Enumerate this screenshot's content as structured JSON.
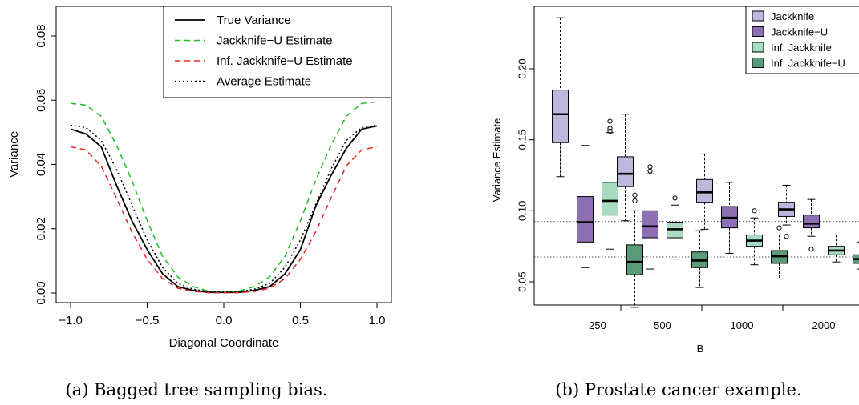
{
  "captions": {
    "a": "(a) Bagged tree sampling bias.",
    "b": "(b) Prostate cancer example."
  },
  "chart_data": [
    {
      "type": "line",
      "title": "",
      "xlabel": "Diagonal Coordinate",
      "ylabel": "Variance",
      "xlim": [
        -1.0,
        1.0
      ],
      "ylim": [
        0.0,
        0.085
      ],
      "x_ticks": [
        -1.0,
        -0.5,
        0.0,
        0.5,
        1.0
      ],
      "x_tick_labels": [
        "−1.0",
        "−0.5",
        "0.0",
        "0.5",
        "1.0"
      ],
      "y_ticks": [
        0.0,
        0.02,
        0.04,
        0.06,
        0.08
      ],
      "y_tick_labels": [
        "0.00",
        "0.02",
        "0.04",
        "0.06",
        "0.08"
      ],
      "legend_position": "top-right",
      "x": [
        -1.0,
        -0.9,
        -0.8,
        -0.7,
        -0.6,
        -0.5,
        -0.4,
        -0.3,
        -0.2,
        -0.1,
        0.0,
        0.1,
        0.2,
        0.3,
        0.4,
        0.5,
        0.6,
        0.7,
        0.8,
        0.9,
        1.0
      ],
      "series": [
        {
          "name": "True Variance",
          "color": "#000000",
          "dash": "solid",
          "values": [
            0.051,
            0.0495,
            0.0455,
            0.0335,
            0.0225,
            0.0135,
            0.006,
            0.002,
            0.0008,
            0.0002,
            0.0002,
            0.0002,
            0.0008,
            0.002,
            0.006,
            0.0135,
            0.027,
            0.0365,
            0.045,
            0.051,
            0.052
          ]
        },
        {
          "name": "Jackknife−U Estimate",
          "color": "#22bb22",
          "dash": "dashed",
          "values": [
            0.059,
            0.0585,
            0.055,
            0.046,
            0.035,
            0.0225,
            0.0115,
            0.005,
            0.002,
            0.0006,
            0.0004,
            0.0006,
            0.002,
            0.005,
            0.0115,
            0.0225,
            0.035,
            0.046,
            0.055,
            0.059,
            0.0595
          ]
        },
        {
          "name": "Inf. Jackknife−U Estimate",
          "color": "#ee2222",
          "dash": "dashed",
          "values": [
            0.0455,
            0.0445,
            0.0395,
            0.0295,
            0.019,
            0.0105,
            0.0045,
            0.0015,
            0.0005,
            0.0001,
            0.0001,
            0.0001,
            0.0005,
            0.0015,
            0.0045,
            0.0105,
            0.019,
            0.0295,
            0.0395,
            0.0445,
            0.0455
          ]
        },
        {
          "name": "Average Estimate",
          "color": "#000000",
          "dash": "dotted",
          "values": [
            0.0522,
            0.0515,
            0.0475,
            0.0385,
            0.0275,
            0.0165,
            0.008,
            0.003,
            0.0012,
            0.0004,
            0.0003,
            0.0004,
            0.0012,
            0.003,
            0.008,
            0.0165,
            0.0275,
            0.0385,
            0.0475,
            0.0515,
            0.0522
          ]
        }
      ]
    },
    {
      "type": "box",
      "title": "",
      "xlabel": "B",
      "ylabel": "Variance Estimate",
      "ylim": [
        0.025,
        0.24
      ],
      "y_ticks": [
        0.05,
        0.1,
        0.15,
        0.2
      ],
      "y_tick_labels": [
        "0.05",
        "0.10",
        "0.15",
        "0.20"
      ],
      "categories": [
        "250",
        "500",
        "1000",
        "2000"
      ],
      "reference_lines": [
        0.0925,
        0.0675
      ],
      "legend_position": "top-right",
      "series": [
        {
          "name": "Jackknife",
          "color": "#bbb8dd",
          "boxes": [
            {
              "min": 0.124,
              "q1": 0.148,
              "median": 0.168,
              "q3": 0.185,
              "max": 0.236,
              "outliers": []
            },
            {
              "min": 0.093,
              "q1": 0.117,
              "median": 0.126,
              "q3": 0.138,
              "max": 0.168,
              "outliers": []
            },
            {
              "min": 0.087,
              "q1": 0.106,
              "median": 0.113,
              "q3": 0.122,
              "max": 0.14,
              "outliers": []
            },
            {
              "min": 0.09,
              "q1": 0.096,
              "median": 0.101,
              "q3": 0.106,
              "max": 0.118,
              "outliers": [
                0.082
              ]
            }
          ]
        },
        {
          "name": "Jackknife−U",
          "color": "#8d6fb3",
          "boxes": [
            {
              "min": 0.06,
              "q1": 0.078,
              "median": 0.092,
              "q3": 0.11,
              "max": 0.146,
              "outliers": []
            },
            {
              "min": 0.059,
              "q1": 0.081,
              "median": 0.089,
              "q3": 0.1,
              "max": 0.126,
              "outliers": [
                0.131,
                0.128
              ]
            },
            {
              "min": 0.07,
              "q1": 0.088,
              "median": 0.095,
              "q3": 0.103,
              "max": 0.12,
              "outliers": []
            },
            {
              "min": 0.082,
              "q1": 0.088,
              "median": 0.091,
              "q3": 0.097,
              "max": 0.108,
              "outliers": [
                0.073
              ]
            }
          ]
        },
        {
          "name": "Inf. Jackknife",
          "color": "#a8dcc0",
          "boxes": [
            {
              "min": 0.073,
              "q1": 0.097,
              "median": 0.107,
              "q3": 0.12,
              "max": 0.155,
              "outliers": [
                0.163,
                0.158,
                0.156
              ]
            },
            {
              "min": 0.066,
              "q1": 0.081,
              "median": 0.087,
              "q3": 0.092,
              "max": 0.104,
              "outliers": [
                0.109
              ]
            },
            {
              "min": 0.062,
              "q1": 0.075,
              "median": 0.079,
              "q3": 0.083,
              "max": 0.095,
              "outliers": [
                0.1
              ]
            },
            {
              "min": 0.064,
              "q1": 0.069,
              "median": 0.072,
              "q3": 0.075,
              "max": 0.083,
              "outliers": []
            }
          ]
        },
        {
          "name": "Inf. Jackknife−U",
          "color": "#5b9a78",
          "boxes": [
            {
              "min": 0.032,
              "q1": 0.055,
              "median": 0.064,
              "q3": 0.076,
              "max": 0.1,
              "outliers": [
                0.111,
                0.107
              ]
            },
            {
              "min": 0.046,
              "q1": 0.06,
              "median": 0.065,
              "q3": 0.071,
              "max": 0.086,
              "outliers": []
            },
            {
              "min": 0.052,
              "q1": 0.063,
              "median": 0.068,
              "q3": 0.072,
              "max": 0.083,
              "outliers": [
                0.088
              ]
            },
            {
              "min": 0.059,
              "q1": 0.063,
              "median": 0.066,
              "q3": 0.069,
              "max": 0.078,
              "outliers": []
            }
          ]
        }
      ]
    }
  ]
}
